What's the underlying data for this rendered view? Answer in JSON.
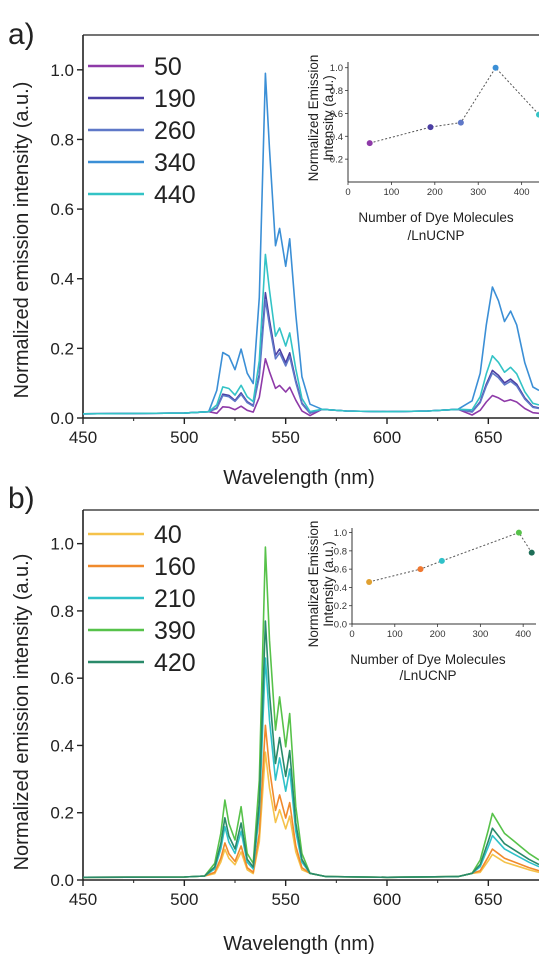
{
  "chart_data": [
    {
      "type": "line",
      "panel_label": "a)",
      "xlabel": "Wavelength (nm)",
      "ylabel": "Normalized emission intensity (a.u.)",
      "xlim": [
        450,
        675
      ],
      "ylim": [
        0,
        1.1
      ],
      "xticks": [
        "450",
        "500",
        "550",
        "600",
        "650"
      ],
      "yticks": [
        "0.0",
        "0.2",
        "0.4",
        "0.6",
        "0.8",
        "1.0"
      ],
      "legend_position": "top-left",
      "x": [
        450,
        500,
        512,
        516,
        519,
        522,
        525,
        528,
        531,
        534,
        537,
        540,
        542,
        545,
        547,
        550,
        552,
        555,
        558,
        562,
        568,
        580,
        600,
        620,
        635,
        642,
        646,
        649,
        652,
        655,
        658,
        661,
        664,
        668,
        672,
        675
      ],
      "shape": [
        0.012,
        0.014,
        0.018,
        0.08,
        0.19,
        0.18,
        0.14,
        0.2,
        0.13,
        0.1,
        0.35,
        1.0,
        0.78,
        0.5,
        0.55,
        0.44,
        0.52,
        0.3,
        0.12,
        0.04,
        0.025,
        0.02,
        0.018,
        0.02,
        0.025,
        0.05,
        0.13,
        0.27,
        0.38,
        0.34,
        0.28,
        0.31,
        0.27,
        0.16,
        0.09,
        0.08
      ],
      "series": [
        {
          "name": "50",
          "color": "#8e3aa8",
          "peak": 0.17
        },
        {
          "name": "190",
          "color": "#4b3fa3",
          "peak": 0.36
        },
        {
          "name": "260",
          "color": "#5f78c8",
          "peak": 0.34
        },
        {
          "name": "340",
          "color": "#3b8fd6",
          "peak": 0.99
        },
        {
          "name": "440",
          "color": "#33c3c6",
          "peak": 0.47
        }
      ],
      "inset": {
        "ylabel_lines": [
          "Normalized Emission",
          "Intensity (a.u.)"
        ],
        "xlabel_lines": [
          "Number of Dye Molecules",
          "/LnUCNP"
        ],
        "xlim": [
          0,
          440
        ],
        "ylim": [
          0,
          1.05
        ],
        "xticks": [
          "0",
          "100",
          "200",
          "300",
          "400"
        ],
        "yticks": [
          "0.2",
          "0.4",
          "0.6",
          "0.8",
          "1.0"
        ],
        "points": [
          {
            "x": 50,
            "y": 0.34,
            "color": "#8e3aa8"
          },
          {
            "x": 190,
            "y": 0.48,
            "color": "#4b3fa3"
          },
          {
            "x": 260,
            "y": 0.52,
            "color": "#5f78c8"
          },
          {
            "x": 340,
            "y": 1.0,
            "color": "#3b8fd6"
          },
          {
            "x": 440,
            "y": 0.59,
            "color": "#33c3c6"
          }
        ]
      }
    },
    {
      "type": "line",
      "panel_label": "b)",
      "xlabel": "Wavelength (nm)",
      "ylabel": "Normalized emission intensity (a.u.)",
      "xlim": [
        450,
        675
      ],
      "ylim": [
        0,
        1.1
      ],
      "xticks": [
        "450",
        "500",
        "550",
        "600",
        "650"
      ],
      "yticks": [
        "0.0",
        "0.2",
        "0.4",
        "0.6",
        "0.8",
        "1.0"
      ],
      "legend_position": "top-left",
      "x": [
        450,
        500,
        510,
        515,
        518,
        520,
        522,
        525,
        528,
        531,
        534,
        537,
        540,
        542,
        545,
        547,
        550,
        552,
        555,
        558,
        562,
        570,
        600,
        635,
        642,
        646,
        650,
        652,
        655,
        658,
        662,
        666,
        670,
        675
      ],
      "shape": [
        0.008,
        0.009,
        0.012,
        0.05,
        0.14,
        0.24,
        0.17,
        0.12,
        0.22,
        0.08,
        0.05,
        0.3,
        1.0,
        0.72,
        0.45,
        0.55,
        0.4,
        0.5,
        0.22,
        0.08,
        0.02,
        0.01,
        0.008,
        0.01,
        0.02,
        0.06,
        0.15,
        0.2,
        0.17,
        0.14,
        0.12,
        0.1,
        0.08,
        0.06
      ],
      "series": [
        {
          "name": "40",
          "color": "#f5c24a",
          "peak": 0.38
        },
        {
          "name": "160",
          "color": "#f08a2c",
          "peak": 0.46
        },
        {
          "name": "210",
          "color": "#2fc1c9",
          "peak": 0.66
        },
        {
          "name": "390",
          "color": "#57c24a",
          "peak": 0.99
        },
        {
          "name": "420",
          "color": "#2a8a6a",
          "peak": 0.77
        }
      ],
      "inset": {
        "ylabel_lines": [
          "Normalized Emission",
          "Intensity (a.u.)"
        ],
        "xlabel_lines": [
          "Number of Dye Molecules",
          "/LnUCNP"
        ],
        "xlim": [
          0,
          430
        ],
        "ylim": [
          0,
          1.05
        ],
        "xticks": [
          "0",
          "100",
          "200",
          "300",
          "400"
        ],
        "yticks": [
          "0.0",
          "0.2",
          "0.4",
          "0.6",
          "0.8",
          "1.0"
        ],
        "points": [
          {
            "x": 40,
            "y": 0.46,
            "color": "#e0a030"
          },
          {
            "x": 160,
            "y": 0.6,
            "color": "#f07830"
          },
          {
            "x": 210,
            "y": 0.69,
            "color": "#2fc1c9"
          },
          {
            "x": 390,
            "y": 1.0,
            "color": "#57c24a"
          },
          {
            "x": 420,
            "y": 0.78,
            "color": "#1e6e57"
          }
        ]
      }
    }
  ]
}
